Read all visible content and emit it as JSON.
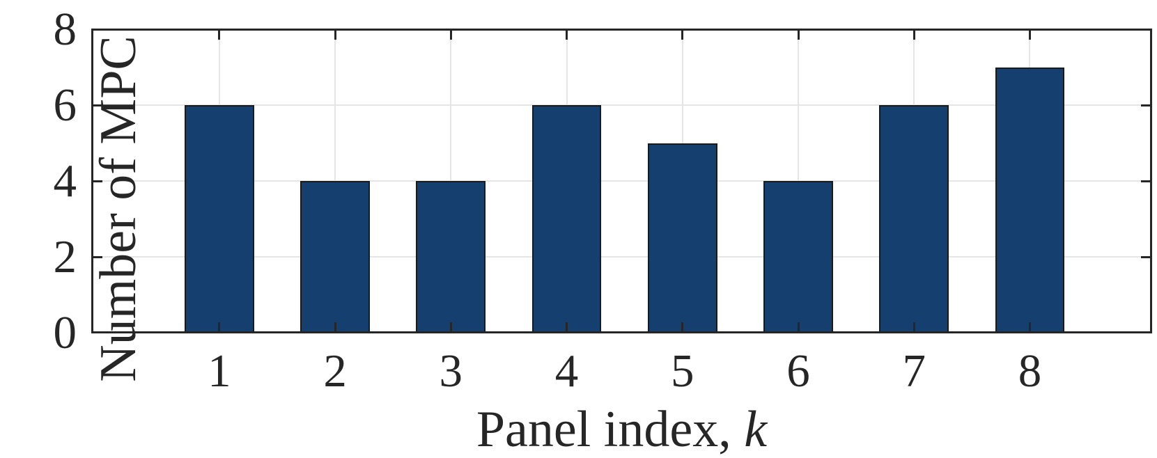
{
  "chart_data": {
    "type": "bar",
    "categories": [
      "1",
      "2",
      "3",
      "4",
      "5",
      "6",
      "7",
      "8"
    ],
    "values": [
      6,
      4,
      4,
      6,
      5,
      4,
      6,
      7
    ],
    "title": "",
    "xlabel": "Panel index, k",
    "xlabel_main": "Panel index, ",
    "xlabel_var": "k",
    "ylabel": "Number of MPC",
    "xlim": [
      -0.1,
      9.05
    ],
    "ylim": [
      0,
      8
    ],
    "yticks": [
      0,
      2,
      4,
      6,
      8
    ],
    "ytick_labels": [
      "0",
      "2",
      "4",
      "6",
      "8"
    ],
    "grid": true,
    "legend": false,
    "bar_width_units": 0.6,
    "colors": {
      "bar_fill": "#143F6F",
      "bar_edge": "#1a1a1a",
      "axis": "#262626",
      "grid": "#e5e5e5",
      "text": "#262626"
    }
  }
}
